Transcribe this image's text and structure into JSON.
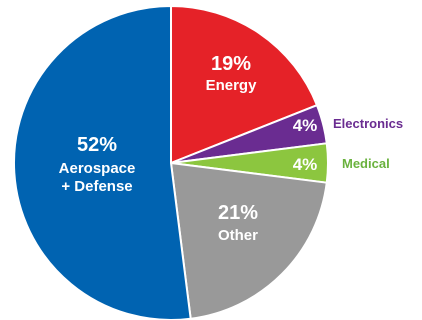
{
  "chart_data": {
    "type": "pie",
    "title": "",
    "slices": [
      {
        "id": "energy",
        "value": 19,
        "pct_label": "19%",
        "label_lines": [
          "Energy"
        ],
        "color": "#e52228",
        "label_position": "inside",
        "label_color": "#ffffff"
      },
      {
        "id": "electronics",
        "value": 4,
        "pct_label": "4%",
        "label_lines": [
          "Electronics"
        ],
        "color": "#6a2c91",
        "label_position": "outside",
        "label_color": "#6a2c91"
      },
      {
        "id": "medical",
        "value": 4,
        "pct_label": "4%",
        "label_lines": [
          "Medical"
        ],
        "color": "#8cc63f",
        "label_position": "outside",
        "label_color": "#6ab23e"
      },
      {
        "id": "other",
        "value": 21,
        "pct_label": "21%",
        "label_lines": [
          "Other"
        ],
        "color": "#999999",
        "label_position": "inside",
        "label_color": "#ffffff"
      },
      {
        "id": "aerospace-defense",
        "value": 52,
        "pct_label": "52%",
        "label_lines": [
          "Aerospace",
          "+ Defense"
        ],
        "color": "#0063b1",
        "label_position": "inside",
        "label_color": "#ffffff"
      }
    ]
  }
}
